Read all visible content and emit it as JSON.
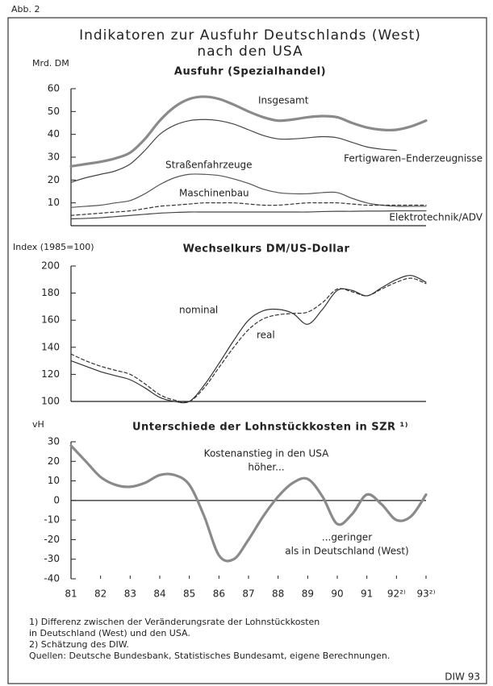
{
  "figure_label": "Abb. 2",
  "title_lines": [
    "Indikatoren zur Ausfuhr Deutschlands (West)",
    "nach den USA"
  ],
  "chart_data": [
    {
      "type": "line",
      "title": "Ausfuhr (Spezialhandel)",
      "y_label": "Mrd. DM",
      "x": [
        81,
        81.5,
        82,
        82.5,
        83,
        83.5,
        84,
        84.5,
        85,
        85.5,
        86,
        86.5,
        87,
        87.5,
        88,
        88.5,
        89,
        89.5,
        90,
        90.5,
        91,
        91.5,
        92,
        92.5,
        93
      ],
      "xlim": [
        81,
        93
      ],
      "ylim": [
        0,
        60
      ],
      "yticks": [
        10,
        20,
        30,
        40,
        50,
        60
      ],
      "series": [
        {
          "name": "Insgesamt",
          "color": "#8a8a8a",
          "style": "thick",
          "values": [
            26,
            27,
            28,
            29.5,
            32,
            38,
            46,
            52,
            55.5,
            56.5,
            55.5,
            53,
            50,
            47.5,
            46,
            46.5,
            47.5,
            48,
            47.5,
            45,
            43,
            42,
            42,
            43.5,
            46
          ]
        },
        {
          "name": "Fertigwaren–Enderzeugnisse",
          "color": "#444444",
          "style": "solid",
          "values": [
            19,
            21,
            22.5,
            24,
            27,
            33,
            40,
            44,
            46,
            46.5,
            46,
            44.5,
            42,
            39.5,
            38,
            38,
            38.5,
            39,
            38.5,
            36.5,
            34.5,
            33.5,
            33,
            null,
            null
          ]
        },
        {
          "name": "Straßenfahrzeuge",
          "color": "#555555",
          "style": "solid",
          "values": [
            8,
            8.5,
            9,
            10,
            11,
            14,
            18,
            21,
            22.5,
            22.5,
            22,
            20.5,
            18.5,
            16,
            14.5,
            14,
            14,
            14.5,
            14.5,
            12,
            10,
            9,
            8.5,
            8.5,
            8.5
          ]
        },
        {
          "name": "Maschinenbau",
          "color": "#333333",
          "style": "dashed",
          "values": [
            4.5,
            5,
            5.5,
            6,
            6.5,
            7.5,
            8.5,
            9,
            9.5,
            10,
            10,
            10,
            9.5,
            9,
            9,
            9.5,
            10,
            10,
            10,
            9.5,
            9,
            9,
            9,
            9,
            9
          ]
        },
        {
          "name": "Elektrotechnik/ADV",
          "color": "#444444",
          "style": "solid",
          "values": [
            3,
            3.2,
            3.5,
            4,
            4.5,
            5,
            5.5,
            5.8,
            6,
            6,
            6,
            6,
            6,
            6,
            6,
            6,
            6,
            6.2,
            6.3,
            6.3,
            6.4,
            6.4,
            6.5,
            6.5,
            6.5
          ]
        }
      ]
    },
    {
      "type": "line",
      "title": "Wechselkurs DM/US-Dollar",
      "y_label": "Index (1985=100)",
      "x": [
        81,
        81.5,
        82,
        82.5,
        83,
        83.5,
        84,
        84.5,
        85,
        85.5,
        86,
        86.5,
        87,
        87.5,
        88,
        88.5,
        89,
        89.5,
        90,
        90.5,
        91,
        91.5,
        92,
        92.5,
        93
      ],
      "xlim": [
        81,
        93
      ],
      "ylim": [
        100,
        200
      ],
      "yticks": [
        100,
        120,
        140,
        160,
        180,
        200
      ],
      "series": [
        {
          "name": "nominal",
          "color": "#333333",
          "style": "solid",
          "values": [
            130,
            126,
            122,
            119,
            116,
            110,
            103,
            100,
            100,
            112,
            128,
            145,
            160,
            167,
            168,
            165,
            157,
            168,
            182,
            182,
            178,
            184,
            190,
            193,
            188
          ]
        },
        {
          "name": "real",
          "color": "#333333",
          "style": "dashed",
          "values": [
            135,
            130,
            126,
            123,
            120,
            113,
            105,
            101,
            100,
            110,
            125,
            140,
            153,
            161,
            164,
            165,
            166,
            173,
            183,
            181,
            178,
            183,
            188,
            191,
            187
          ]
        }
      ]
    },
    {
      "type": "line",
      "title": "Unterschiede der Lohnstückkosten in SZR ¹⁾",
      "y_label": "vH",
      "x": [
        81,
        81.5,
        82,
        82.5,
        83,
        83.5,
        84,
        84.5,
        85,
        85.5,
        86,
        86.5,
        87,
        87.5,
        88,
        88.5,
        89,
        89.5,
        90,
        90.5,
        91,
        91.5,
        92,
        92.5,
        93
      ],
      "xlim": [
        81,
        93
      ],
      "xticks": [
        81,
        82,
        83,
        84,
        85,
        86,
        87,
        88,
        89,
        90,
        91,
        {
          "value": 92,
          "label": "92²⁾"
        },
        {
          "value": 93,
          "label": "93²⁾"
        }
      ],
      "ylim": [
        -40,
        30
      ],
      "yticks": [
        -40,
        -30,
        -20,
        -10,
        0,
        10,
        20,
        30
      ],
      "annotations": [
        "Kostenanstieg in den USA",
        "höher...",
        "...geringer",
        "als in Deutschland (West)"
      ],
      "series": [
        {
          "name": "Lohnstückkosten",
          "color": "#8a8a8a",
          "style": "thick",
          "values": [
            28,
            20,
            12,
            8,
            7,
            9,
            13,
            13,
            8,
            -8,
            -28,
            -30,
            -20,
            -8,
            2,
            9,
            11,
            2,
            -12,
            -7,
            3,
            -2,
            -10,
            -8,
            3
          ]
        }
      ]
    }
  ],
  "footnotes": [
    "1) Differenz zwischen der Veränderungsrate der Lohnstückkosten",
    "in Deutschland (West) und den USA.",
    "2) Schätzung des DIW.",
    "Quellen: Deutsche Bundesbank, Statistisches Bundesamt, eigene Berechnungen."
  ],
  "source_tag": "DIW 93"
}
